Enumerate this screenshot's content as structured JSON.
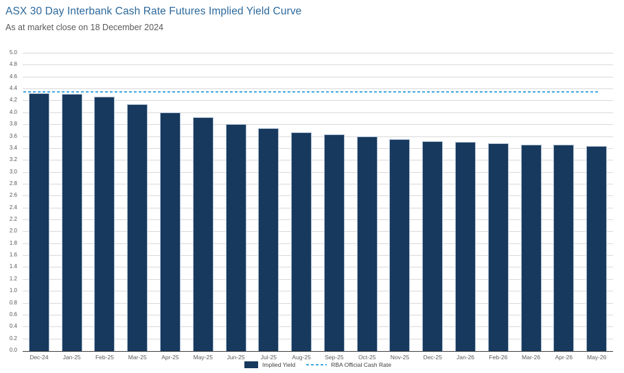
{
  "page": {
    "title": "ASX 30 Day Interbank Cash Rate Futures Implied Yield Curve",
    "subtitle": "As at market close on 18 December 2024"
  },
  "chart_data": {
    "type": "bar",
    "title": "ASX 30 Day Interbank Cash Rate Futures Implied Yield Curve",
    "subtitle": "As at market close on 18 December 2024",
    "categories": [
      "Dec-24",
      "Jan-25",
      "Feb-25",
      "Mar-25",
      "Apr-25",
      "May-25",
      "Jun-25",
      "Jul-25",
      "Aug-25",
      "Sep-25",
      "Oct-25",
      "Nov-25",
      "Dec-25",
      "Jan-26",
      "Feb-26",
      "Mar-26",
      "Apr-26",
      "May-26"
    ],
    "series": [
      {
        "name": "Implied Yield",
        "type": "bar",
        "color": "#17395e",
        "values": [
          4.33,
          4.32,
          4.27,
          4.15,
          4.01,
          3.93,
          3.81,
          3.75,
          3.67,
          3.64,
          3.61,
          3.56,
          3.53,
          3.51,
          3.49,
          3.47,
          3.47,
          3.45
        ]
      },
      {
        "name": "RBA Official Cash Rate",
        "type": "dashed-line",
        "color": "#41a9e1",
        "value": 4.35
      }
    ],
    "xlabel": "",
    "ylabel": "",
    "ylim": [
      0.0,
      5.0
    ],
    "ytick_step": 0.2,
    "grid": true,
    "legend_position": "bottom",
    "colors": {
      "bar_fill": "#17395e",
      "bar_border": "#aebfd2",
      "rate_line": "#41a9e1",
      "gridline": "#d9d9d9",
      "axis_line": "#3f3f3f",
      "title_text": "#2c699c",
      "axis_text": "#595959"
    }
  }
}
